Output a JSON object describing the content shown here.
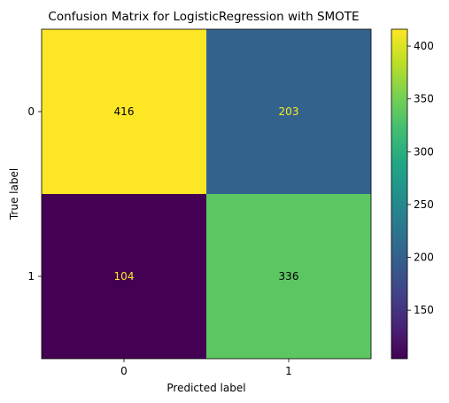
{
  "chart_data": {
    "type": "heatmap",
    "title": "Confusion Matrix for LogisticRegression with SMOTE",
    "xlabel": "Predicted label",
    "ylabel": "True label",
    "x_categories": [
      "0",
      "1"
    ],
    "y_categories": [
      "0",
      "1"
    ],
    "values": [
      [
        416,
        203
      ],
      [
        104,
        336
      ]
    ],
    "colormap": "viridis",
    "colorbar": {
      "range": [
        104,
        416
      ],
      "ticks": [
        "150",
        "200",
        "250",
        "300",
        "350",
        "400"
      ]
    },
    "text_colors": {
      "on_dark": "#fde725",
      "on_light": "#000000"
    }
  }
}
